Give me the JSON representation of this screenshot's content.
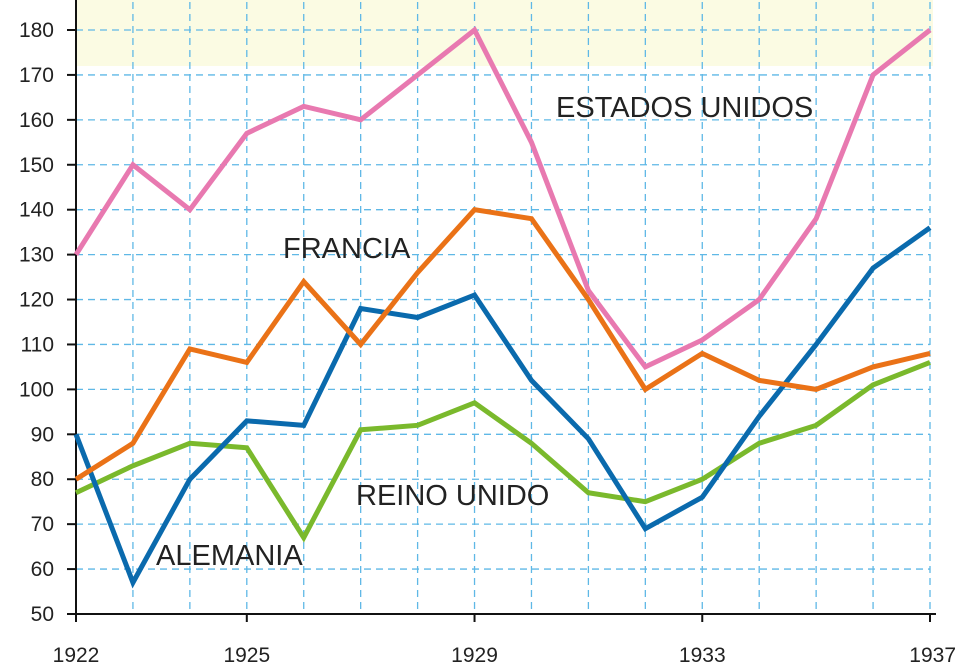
{
  "chart_data": {
    "type": "line",
    "title": "",
    "xlabel": "",
    "ylabel": "",
    "x": [
      1922,
      1923,
      1924,
      1925,
      1926,
      1927,
      1928,
      1929,
      1930,
      1931,
      1932,
      1933,
      1934,
      1935,
      1936,
      1937
    ],
    "xticks": [
      "1922",
      "1925",
      "1929",
      "1933",
      "1937"
    ],
    "xlim": [
      1922,
      1937
    ],
    "ylim": [
      50,
      180
    ],
    "yticks": [
      50,
      60,
      70,
      80,
      90,
      100,
      110,
      120,
      130,
      140,
      150,
      160,
      170,
      180
    ],
    "grid": true,
    "series": [
      {
        "name": "ESTADOS UNIDOS",
        "color": "#e879b0",
        "values": [
          130,
          150,
          140,
          157,
          163,
          160,
          170,
          180,
          155,
          122,
          105,
          111,
          120,
          138,
          170,
          180
        ]
      },
      {
        "name": "FRANCIA",
        "color": "#ea7217",
        "values": [
          80,
          88,
          109,
          106,
          124,
          110,
          126,
          140,
          138,
          120,
          100,
          108,
          102,
          100,
          105,
          108
        ]
      },
      {
        "name": "ALEMANIA",
        "color": "#0a6aad",
        "values": [
          90,
          57,
          80,
          93,
          92,
          118,
          116,
          121,
          102,
          89,
          69,
          76,
          94,
          110,
          127,
          136
        ]
      },
      {
        "name": "REINO UNIDO",
        "color": "#7ab92c",
        "values": [
          77,
          83,
          88,
          87,
          67,
          91,
          92,
          97,
          88,
          77,
          75,
          80,
          88,
          92,
          101,
          106
        ]
      }
    ]
  }
}
